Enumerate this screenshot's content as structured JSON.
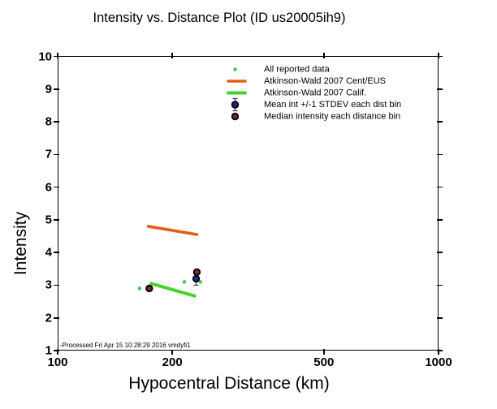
{
  "title": "Intensity vs. Distance Plot (ID us20005ih9)",
  "processed_note": "-Processed Fri Apr 15 10:28:29 2016 vmdyfi1",
  "axes": {
    "x": {
      "title": "Hypocentral Distance (km)",
      "scale": "log",
      "range": [
        100,
        1000
      ],
      "tick_values": [
        100,
        200,
        500,
        1000
      ],
      "tick_labels": [
        "100",
        "200",
        "500",
        "1000"
      ]
    },
    "y": {
      "title": "Intensity",
      "scale": "linear",
      "range": [
        1,
        10
      ],
      "tick_values": [
        1,
        2,
        3,
        4,
        5,
        6,
        7,
        8,
        9,
        10
      ],
      "tick_labels": [
        "1",
        "2",
        "3",
        "4",
        "5",
        "6",
        "7",
        "8",
        "9",
        "10"
      ]
    }
  },
  "colors": {
    "data_dot": "#3bce5a",
    "ceus_line": "#e65c1a",
    "calif_line": "#43d42b",
    "mean_fill": "#23239b",
    "median_fill": "#7c2421",
    "marker_edge": "#000000",
    "errorbar": "#3a3a3a",
    "axis": "#000000"
  },
  "legend": {
    "items": [
      {
        "symbol": "data-dot",
        "label": "All reported data"
      },
      {
        "symbol": "ceus-line",
        "label": "Atkinson-Wald 2007 Cent/EUS"
      },
      {
        "symbol": "calif-line",
        "label": "Atkinson-Wald 2007 Calif."
      },
      {
        "symbol": "mean-marker",
        "label": "Mean int +/-1 STDEV each dist bin"
      },
      {
        "symbol": "median-marker",
        "label": "Median intensity each distance bin"
      }
    ]
  },
  "chart_data": {
    "type": "scatter",
    "title": "Intensity vs. Distance Plot (ID us20005ih9)",
    "xlabel": "Hypocentral Distance (km)",
    "ylabel": "Intensity",
    "x_scale": "log",
    "xlim": [
      100,
      1000
    ],
    "ylim": [
      1,
      10
    ],
    "grid": false,
    "legend_position": "upper center-right, no box",
    "series": [
      {
        "name": "All reported data",
        "type": "scatter",
        "points": [
          [
            164,
            2.9
          ],
          [
            215,
            3.1
          ],
          [
            237,
            3.1
          ]
        ]
      },
      {
        "name": "Atkinson-Wald 2007 Cent/EUS",
        "type": "line",
        "points": [
          [
            173,
            4.8
          ],
          [
            232,
            4.55
          ]
        ]
      },
      {
        "name": "Atkinson-Wald 2007 Calif.",
        "type": "line",
        "points": [
          [
            176,
            3.05
          ],
          [
            229,
            2.67
          ]
        ]
      },
      {
        "name": "Mean int +/-1 STDEV each dist bin",
        "type": "scatter",
        "stdev": 0.2,
        "points": [
          [
            231,
            3.2
          ]
        ]
      },
      {
        "name": "Median intensity each distance bin",
        "type": "scatter",
        "points": [
          [
            174,
            2.9
          ],
          [
            232,
            3.4
          ]
        ]
      }
    ]
  }
}
